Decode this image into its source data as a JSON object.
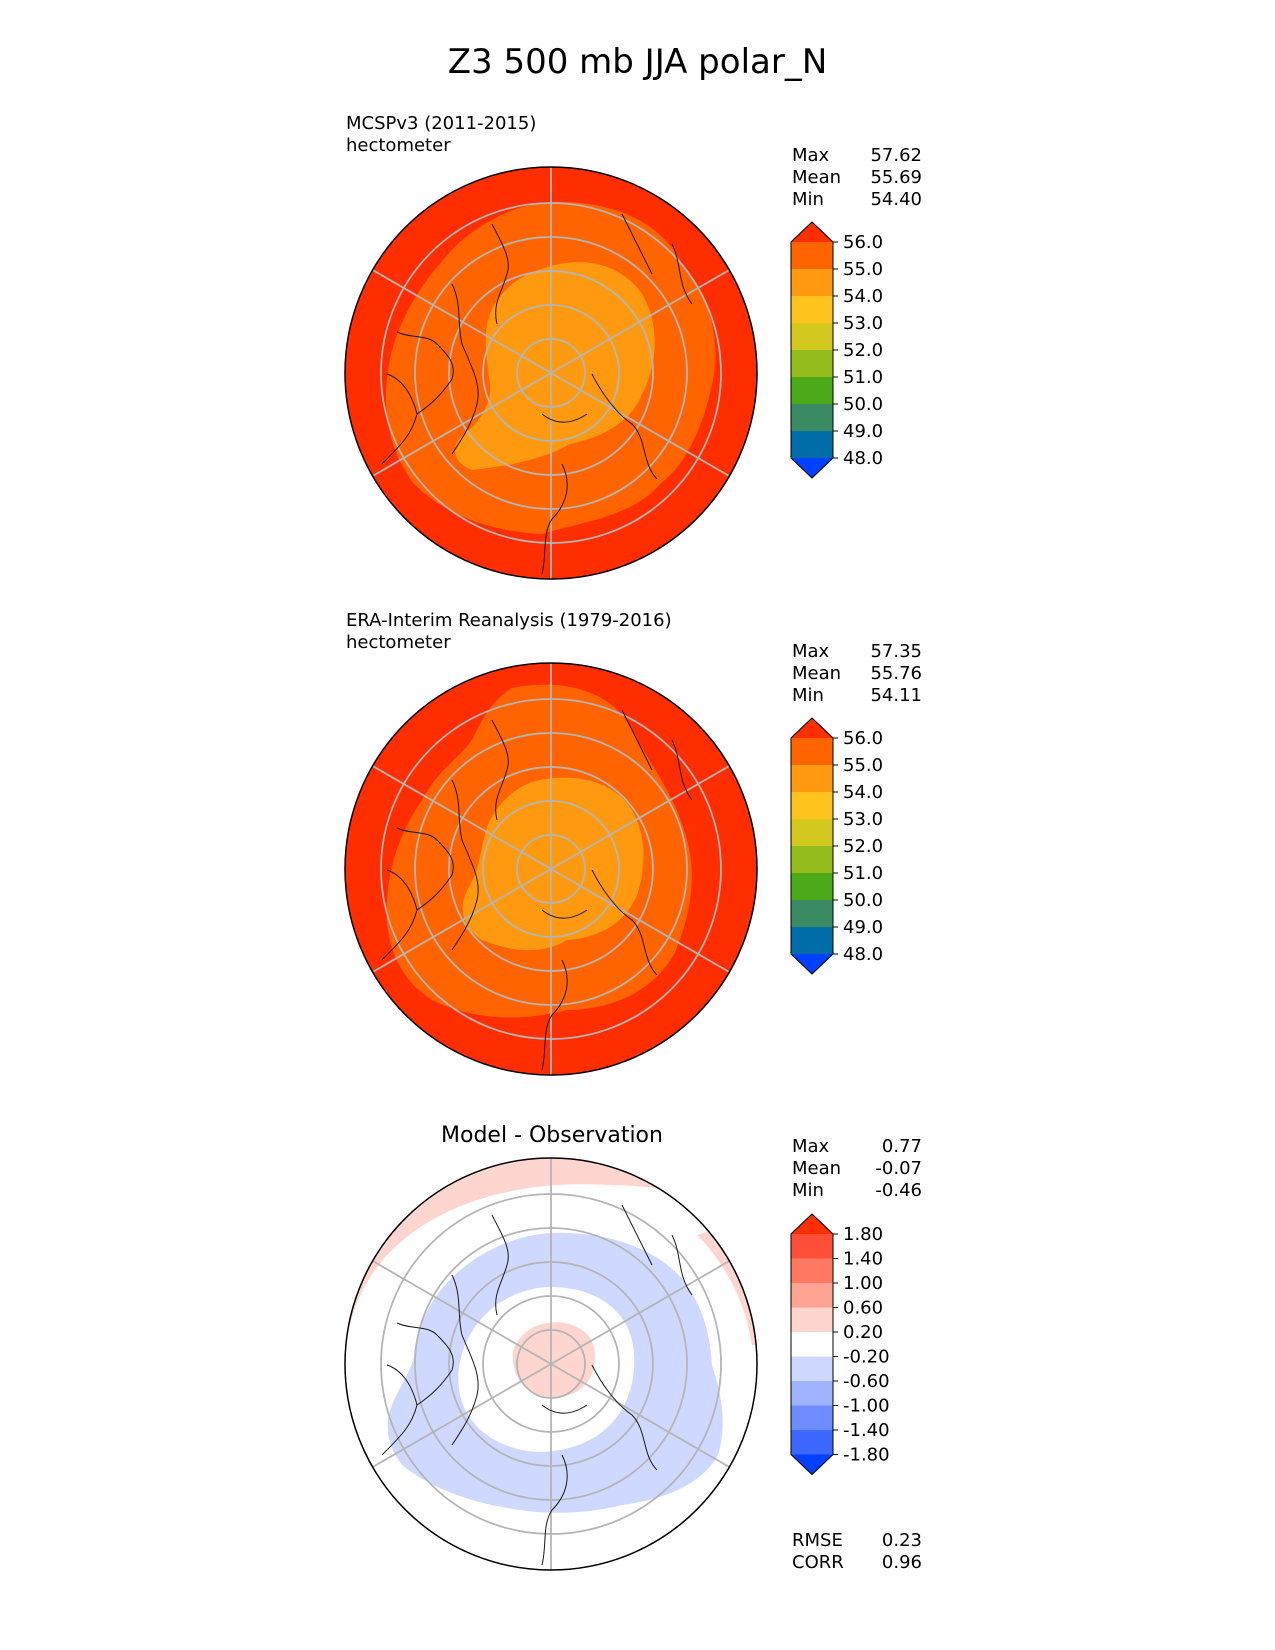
{
  "title": "Z3 500 mb JJA polar_N",
  "panels": [
    {
      "name": "test",
      "label": "MCSPv3 (2011-2015)",
      "units": "hectometer",
      "stats": [
        {
          "label": "Max",
          "value": "57.62"
        },
        {
          "label": "Mean",
          "value": "55.69"
        },
        {
          "label": "Min",
          "value": "54.40"
        }
      ]
    },
    {
      "name": "reference",
      "label": "ERA-Interim Reanalysis (1979-2016)",
      "units": "hectometer",
      "stats": [
        {
          "label": "Max",
          "value": "57.35"
        },
        {
          "label": "Mean",
          "value": "55.76"
        },
        {
          "label": "Min",
          "value": "54.11"
        }
      ]
    },
    {
      "name": "difference",
      "title": "Model - Observation",
      "stats": [
        {
          "label": "Max",
          "value": "0.77"
        },
        {
          "label": "Mean",
          "value": "-0.07"
        },
        {
          "label": "Min",
          "value": "-0.46"
        }
      ],
      "extra_stats": [
        {
          "label": "RMSE",
          "value": "0.23"
        },
        {
          "label": "CORR",
          "value": "0.96"
        }
      ]
    }
  ],
  "chart_data": [
    {
      "type": "heatmap",
      "projection": "north-polar-stereographic",
      "label": "MCSPv3 (2011-2015)",
      "units": "hectometer",
      "colorbar": {
        "levels": [
          48,
          49,
          50,
          51,
          52,
          53,
          54,
          55,
          56
        ],
        "tick_labels": [
          "56.0",
          "55.0",
          "54.0",
          "53.0",
          "52.0",
          "51.0",
          "50.0",
          "49.0",
          "48.0"
        ],
        "colors_top_to_bottom": [
          "#ff2e00",
          "#ff6400",
          "#ff9a10",
          "#ffc31e",
          "#d4c81e",
          "#94bc1c",
          "#4caa18",
          "#3a8a64",
          "#006ca8",
          "#0040ff"
        ],
        "extend": "both"
      },
      "field_bands": [
        {
          "value_range": [
            56,
            57.62
          ],
          "color": "#ff2e00"
        },
        {
          "value_range": [
            55,
            56
          ],
          "color": "#ff6400"
        },
        {
          "value_range": [
            54.4,
            55
          ],
          "color": "#ff9a10"
        }
      ]
    },
    {
      "type": "heatmap",
      "projection": "north-polar-stereographic",
      "label": "ERA-Interim Reanalysis (1979-2016)",
      "units": "hectometer",
      "colorbar": {
        "levels": [
          48,
          49,
          50,
          51,
          52,
          53,
          54,
          55,
          56
        ],
        "tick_labels": [
          "56.0",
          "55.0",
          "54.0",
          "53.0",
          "52.0",
          "51.0",
          "50.0",
          "49.0",
          "48.0"
        ],
        "colors_top_to_bottom": [
          "#ff2e00",
          "#ff6400",
          "#ff9a10",
          "#ffc31e",
          "#d4c81e",
          "#94bc1c",
          "#4caa18",
          "#3a8a64",
          "#006ca8",
          "#0040ff"
        ],
        "extend": "both"
      },
      "field_bands": [
        {
          "value_range": [
            56,
            57.35
          ],
          "color": "#ff2e00"
        },
        {
          "value_range": [
            55,
            56
          ],
          "color": "#ff6400"
        },
        {
          "value_range": [
            54.11,
            55
          ],
          "color": "#ff9a10"
        }
      ]
    },
    {
      "type": "heatmap",
      "projection": "north-polar-stereographic",
      "title": "Model - Observation",
      "colorbar": {
        "levels": [
          -1.8,
          -1.4,
          -1.0,
          -0.6,
          -0.2,
          0.2,
          0.6,
          1.0,
          1.4,
          1.8
        ],
        "tick_labels": [
          "1.80",
          "1.40",
          "1.00",
          "0.60",
          "0.20",
          "-0.20",
          "-0.60",
          "-1.00",
          "-1.40",
          "-1.80"
        ],
        "colors_top_to_bottom": [
          "#ff2e00",
          "#ff4f38",
          "#ff7862",
          "#ffa392",
          "#ffd5cf",
          "#ffffff",
          "#cfd8ff",
          "#a0b3ff",
          "#6f8cff",
          "#3d68ff",
          "#0040ff"
        ],
        "extend": "both"
      },
      "field_bands": [
        {
          "value_range": [
            0.2,
            0.77
          ],
          "color": "#ffd5cf"
        },
        {
          "value_range": [
            -0.2,
            0.2
          ],
          "color": "#ffffff"
        },
        {
          "value_range": [
            -0.46,
            -0.2
          ],
          "color": "#cfd8ff"
        }
      ]
    }
  ]
}
